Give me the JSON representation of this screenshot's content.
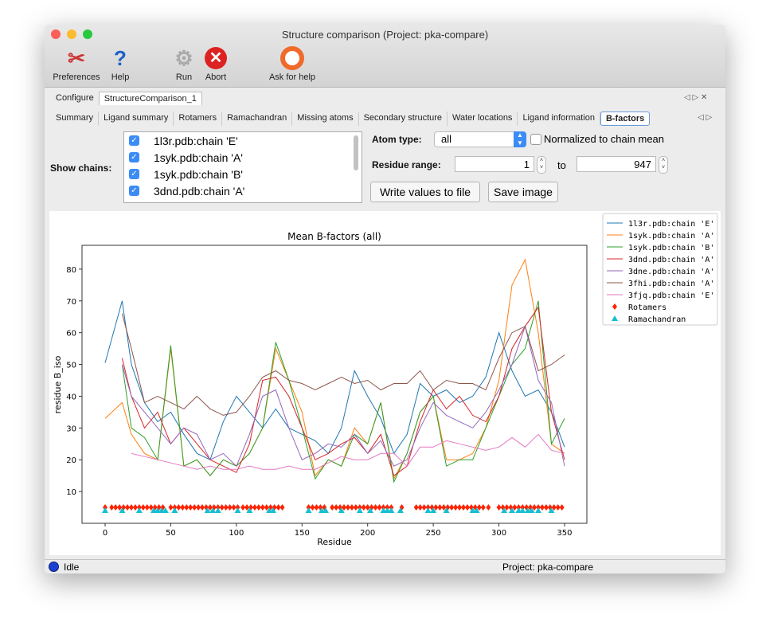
{
  "window": {
    "title": "Structure comparison (Project: pka-compare)"
  },
  "toolbar": [
    {
      "label": "Preferences",
      "icon": "preferences-icon"
    },
    {
      "label": "Help",
      "icon": "help-icon"
    },
    {
      "label": "Run",
      "icon": "gear-icon"
    },
    {
      "label": "Abort",
      "icon": "abort-icon"
    },
    {
      "label": "Ask for help",
      "icon": "lifebuoy-icon"
    }
  ],
  "top_tabs": [
    "Configure",
    "StructureComparison_1"
  ],
  "sub_tabs": [
    "Summary",
    "Ligand summary",
    "Rotamers",
    "Ramachandran",
    "Missing atoms",
    "Secondary structure",
    "Water locations",
    "Ligand information",
    "B-factors"
  ],
  "controls": {
    "show_chains_label": "Show chains:",
    "chains": [
      {
        "label": "1l3r.pdb:chain 'E'",
        "checked": true
      },
      {
        "label": "1syk.pdb:chain 'A'",
        "checked": true
      },
      {
        "label": "1syk.pdb:chain 'B'",
        "checked": true
      },
      {
        "label": "3dnd.pdb:chain 'A'",
        "checked": true
      }
    ],
    "atom_type_label": "Atom type:",
    "atom_type_value": "all",
    "normalized_label": "Normalized to chain mean",
    "normalized_checked": false,
    "residue_range_label": "Residue range:",
    "range_from": "1",
    "range_to_label": "to",
    "range_to": "947",
    "write_button": "Write values to file",
    "save_button": "Save image"
  },
  "status": {
    "text": "Idle",
    "project": "Project: pka-compare"
  },
  "chart_data": {
    "type": "line",
    "title": "Mean B-factors (all)",
    "xlabel": "Residue",
    "ylabel": "residue B_iso",
    "xlim": [
      -17.6,
      367
    ],
    "ylim": [
      0,
      87.5
    ],
    "xticks": [
      0,
      50,
      100,
      150,
      200,
      250,
      300,
      350
    ],
    "yticks": [
      10,
      20,
      30,
      40,
      50,
      60,
      70,
      80
    ],
    "grid": false,
    "legend": "outside-top-right",
    "x": [
      0,
      13,
      20,
      30,
      40,
      50,
      60,
      70,
      80,
      90,
      100,
      110,
      120,
      130,
      140,
      150,
      160,
      170,
      180,
      190,
      200,
      210,
      220,
      230,
      240,
      250,
      260,
      270,
      280,
      290,
      300,
      310,
      320,
      330,
      340,
      350
    ],
    "series": [
      {
        "name": "1l3r.pdb:chain 'E'",
        "color": "#1f77b4",
        "values": [
          50.5,
          70,
          50,
          38,
          32,
          35,
          28,
          22,
          20,
          32,
          40,
          35,
          30,
          36,
          30,
          28,
          26,
          22,
          30,
          48,
          40,
          33,
          22,
          28,
          44,
          40,
          42,
          38,
          40,
          46,
          60,
          48,
          40,
          42,
          35,
          24
        ]
      },
      {
        "name": "1syk.pdb:chain 'A'",
        "color": "#ff7f0e",
        "values": [
          33,
          38,
          28,
          22,
          20,
          55,
          18,
          20,
          15,
          20,
          18,
          22,
          30,
          55,
          45,
          35,
          15,
          20,
          18,
          30,
          25,
          38,
          14,
          22,
          35,
          40,
          20,
          20,
          22,
          30,
          45,
          75,
          83,
          60,
          25,
          22
        ]
      },
      {
        "name": "1syk.pdb:chain 'B'",
        "color": "#2ca02c",
        "values": [
          null,
          50,
          30,
          27,
          20,
          56,
          18,
          20,
          15,
          20,
          18,
          22,
          30,
          57,
          45,
          30,
          14,
          20,
          18,
          28,
          25,
          38,
          13,
          22,
          35,
          40,
          18,
          20,
          20,
          30,
          40,
          50,
          55,
          70,
          25,
          33
        ]
      },
      {
        "name": "3dnd.pdb:chain 'A'",
        "color": "#d62728",
        "values": [
          null,
          52,
          40,
          30,
          35,
          25,
          30,
          25,
          20,
          18,
          16,
          25,
          45,
          46,
          40,
          30,
          20,
          22,
          25,
          27,
          22,
          28,
          15,
          18,
          32,
          42,
          36,
          40,
          34,
          32,
          40,
          55,
          62,
          68,
          35,
          20
        ]
      },
      {
        "name": "3dne.pdb:chain 'A'",
        "color": "#9467bd",
        "values": [
          null,
          50,
          40,
          35,
          30,
          25,
          30,
          28,
          20,
          22,
          18,
          28,
          40,
          42,
          30,
          20,
          22,
          25,
          24,
          28,
          22,
          26,
          18,
          20,
          30,
          38,
          34,
          32,
          30,
          35,
          42,
          50,
          62,
          45,
          38,
          18
        ]
      },
      {
        "name": "3fhi.pdb:chain 'A'",
        "color": "#8c564b",
        "values": [
          null,
          66,
          55,
          38,
          40,
          38,
          36,
          40,
          36,
          34,
          35,
          40,
          46,
          48,
          45,
          44,
          42,
          44,
          46,
          44,
          45,
          42,
          44,
          44,
          48,
          42,
          45,
          44,
          44,
          42,
          52,
          60,
          62,
          48,
          50,
          53
        ]
      },
      {
        "name": "3fjq.pdb:chain 'E'",
        "color": "#e377c2",
        "values": [
          null,
          null,
          22,
          21,
          20,
          19,
          18,
          17,
          18,
          17,
          17,
          18,
          17,
          17,
          18,
          17,
          17,
          19,
          21,
          20,
          20,
          22,
          22,
          18,
          24,
          24,
          26,
          25,
          24,
          23,
          24,
          27,
          24,
          28,
          23,
          22
        ]
      }
    ],
    "markers": [
      {
        "name": "Rotamers",
        "color": "#ff2200",
        "shape": "diamond",
        "y": 5,
        "x": [
          0,
          5,
          8,
          11,
          14,
          17,
          20,
          23,
          26,
          29,
          32,
          35,
          38,
          41,
          44,
          50,
          53,
          56,
          59,
          62,
          65,
          68,
          71,
          74,
          77,
          80,
          83,
          86,
          89,
          92,
          95,
          98,
          101,
          105,
          108,
          111,
          114,
          117,
          120,
          123,
          126,
          129,
          132,
          135,
          155,
          158,
          161,
          164,
          167,
          173,
          176,
          179,
          182,
          185,
          188,
          191,
          194,
          197,
          200,
          203,
          206,
          209,
          212,
          215,
          218,
          226,
          237,
          240,
          243,
          246,
          249,
          252,
          255,
          258,
          261,
          264,
          267,
          270,
          273,
          276,
          279,
          282,
          285,
          288,
          292,
          300,
          303,
          306,
          309,
          312,
          315,
          318,
          321,
          324,
          327,
          330,
          333,
          336,
          339,
          342,
          345,
          348
        ]
      },
      {
        "name": "Ramachandran",
        "color": "#17becf",
        "shape": "triangle",
        "y": 4,
        "x": [
          0,
          13,
          26,
          37,
          40,
          43,
          46,
          53,
          78,
          82,
          86,
          101,
          110,
          125,
          128,
          155,
          165,
          168,
          180,
          194,
          202,
          212,
          215,
          218,
          225,
          246,
          250,
          260,
          280,
          283,
          304,
          310,
          315,
          318,
          322,
          325,
          330,
          340
        ]
      }
    ]
  }
}
